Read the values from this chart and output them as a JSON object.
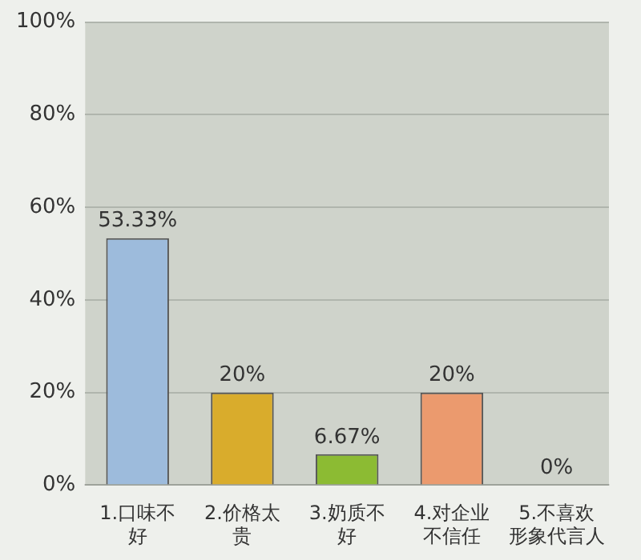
{
  "chart_data": {
    "type": "bar",
    "categories": [
      "1.口味不好",
      "2.价格太贵",
      "3.奶质不好",
      "4.对企业不信任",
      "5.不喜欢形象代言人"
    ],
    "values": [
      53.33,
      20,
      6.67,
      20,
      0
    ],
    "value_labels": [
      "53.33%",
      "20%",
      "6.67%",
      "20%",
      "0%"
    ],
    "colors": [
      "#9dbbdc",
      "#d9ac2c",
      "#8cbb33",
      "#eb9a6e",
      "#3cb3bb"
    ],
    "ylim": [
      0,
      100
    ],
    "yticks": [
      {
        "value": 0,
        "label": "0%"
      },
      {
        "value": 20,
        "label": "20%"
      },
      {
        "value": 40,
        "label": "40%"
      },
      {
        "value": 60,
        "label": "60%"
      },
      {
        "value": 80,
        "label": "80%"
      },
      {
        "value": 100,
        "label": "100%"
      }
    ],
    "grid": "y",
    "legend": false
  }
}
